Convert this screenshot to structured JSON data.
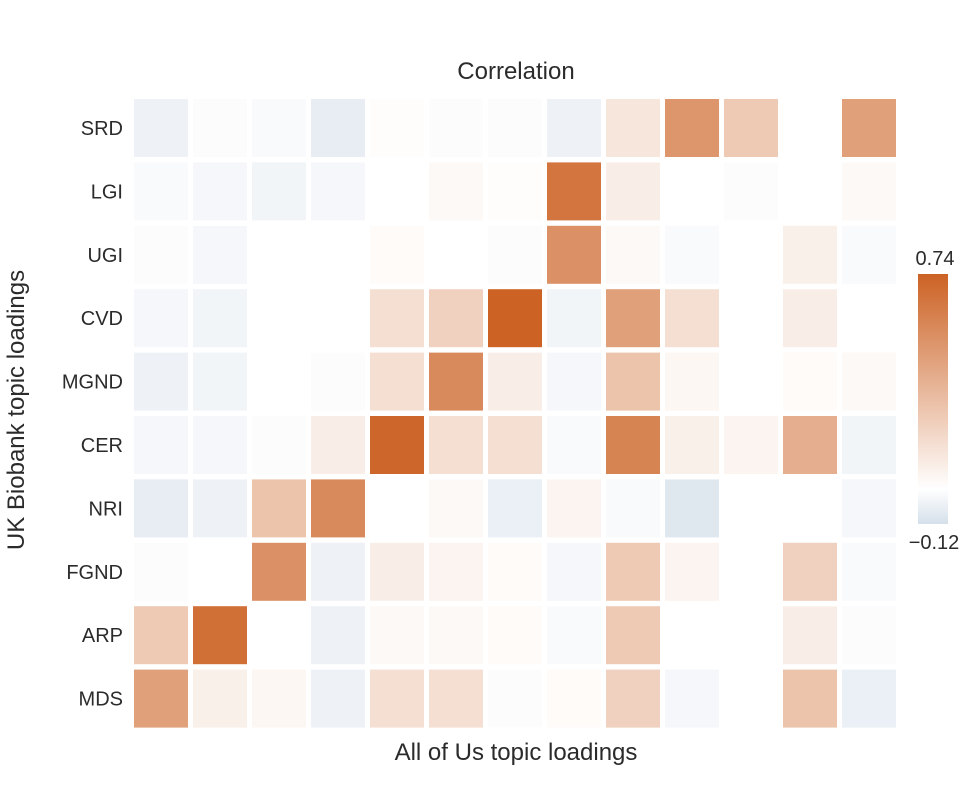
{
  "chart_data": {
    "type": "heatmap",
    "title": "Correlation",
    "xlabel": "All of Us topic loadings",
    "ylabel": "UK Biobank topic loadings",
    "rows": [
      "SRD",
      "LGI",
      "UGI",
      "CVD",
      "MGND",
      "CER",
      "NRI",
      "FGND",
      "ARP",
      "MDS"
    ],
    "n_cols": 13,
    "values": [
      [
        -0.05,
        -0.01,
        -0.02,
        -0.07,
        0.01,
        -0.01,
        -0.01,
        -0.05,
        0.12,
        0.5,
        0.25,
        0.0,
        0.45
      ],
      [
        -0.02,
        -0.03,
        -0.04,
        -0.03,
        0.0,
        0.03,
        0.01,
        0.65,
        0.08,
        0.0,
        -0.01,
        0.0,
        0.03
      ],
      [
        -0.01,
        -0.03,
        0.0,
        0.0,
        0.02,
        0.0,
        -0.01,
        0.52,
        0.03,
        -0.02,
        0.0,
        0.07,
        -0.02
      ],
      [
        -0.03,
        -0.04,
        0.0,
        0.0,
        0.15,
        0.22,
        0.74,
        -0.04,
        0.45,
        0.15,
        0.0,
        0.08,
        0.0
      ],
      [
        -0.05,
        -0.04,
        0.0,
        -0.01,
        0.15,
        0.55,
        0.08,
        -0.03,
        0.28,
        0.04,
        0.0,
        0.02,
        0.03
      ],
      [
        -0.03,
        -0.03,
        -0.01,
        0.08,
        0.72,
        0.15,
        0.15,
        -0.02,
        0.58,
        0.07,
        0.05,
        0.38,
        -0.04
      ],
      [
        -0.07,
        -0.05,
        0.28,
        0.55,
        0.0,
        0.03,
        -0.06,
        0.05,
        -0.02,
        -0.09,
        0.0,
        0.0,
        -0.03
      ],
      [
        -0.01,
        0.0,
        0.52,
        -0.05,
        0.08,
        0.05,
        0.02,
        -0.03,
        0.25,
        0.05,
        0.0,
        0.22,
        -0.02
      ],
      [
        0.25,
        0.68,
        0.0,
        -0.05,
        0.03,
        0.03,
        0.02,
        -0.02,
        0.25,
        0.0,
        0.0,
        0.08,
        -0.01
      ],
      [
        0.45,
        0.07,
        0.04,
        -0.05,
        0.15,
        0.15,
        -0.01,
        0.02,
        0.22,
        -0.03,
        0.0,
        0.28,
        -0.06
      ]
    ],
    "colorbar": {
      "min": -0.12,
      "max": 0.74,
      "min_label": "−0.12",
      "max_label": "0.74",
      "color_low": "#d5e0ea",
      "color_mid": "#ffffff",
      "color_high": "#cc6224"
    }
  }
}
